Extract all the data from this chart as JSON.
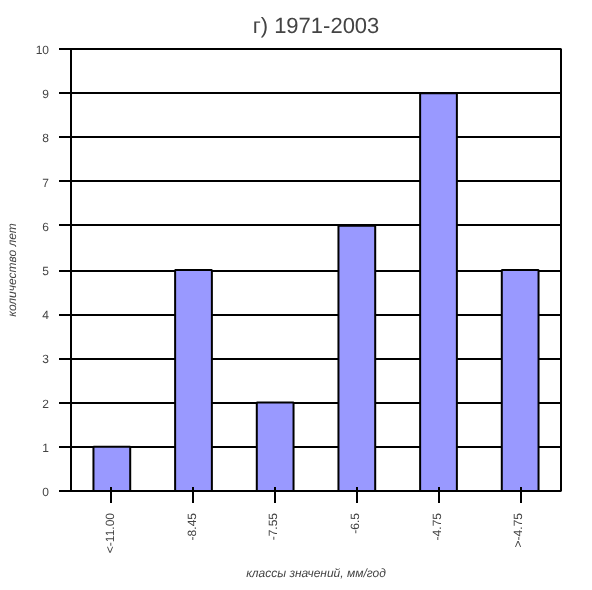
{
  "chart_data": {
    "type": "bar",
    "title": "г) 1971-2003",
    "categories": [
      "<-11.00",
      "-8.45",
      "-7.55",
      "-6.5",
      "-4.75",
      ">-4.75"
    ],
    "values": [
      1,
      5,
      2,
      6,
      9,
      5
    ],
    "color": "#9999ff",
    "ylim": [
      0,
      10
    ],
    "yticks": [
      0,
      1,
      2,
      3,
      4,
      5,
      6,
      7,
      8,
      9,
      10
    ],
    "grid": "y",
    "xlabel": "классы значений, мм/год",
    "ylabel": "количество лет"
  }
}
